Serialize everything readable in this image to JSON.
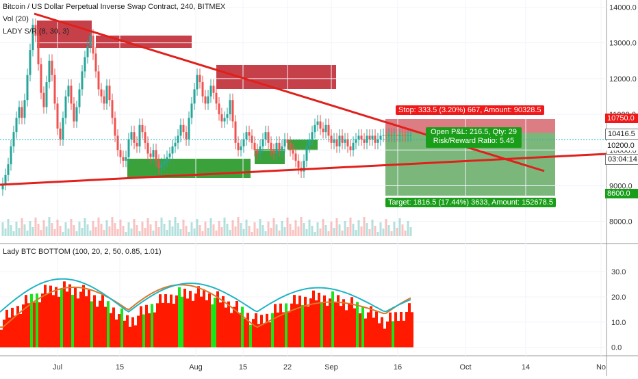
{
  "header": {
    "title": "Bitcoin / US Dollar Perpetual Inverse Swap Contract, 240, BITMEX",
    "vol": "Vol (20)",
    "sr": "LADY S/R (8, 30, 3)"
  },
  "indicator": {
    "label": "Lady BTC BOTTOM (100, 20, 2, 50, 0.85, 1.01)"
  },
  "price_tags": {
    "stop_level": "10750.0",
    "last": "10416.5",
    "entry": "10200.0",
    "countdown": "03:04:14",
    "target_level": "8600.0"
  },
  "position": {
    "stop": "Stop: 333.5 (3.20%) 667, Amount: 90328.5",
    "pnl": "Open P&L: 216.5, Qty: 29",
    "rr": "Risk/Reward Ratio: 5.45",
    "target": "Target: 1816.5 (17.44%) 3633, Amount: 152678.5"
  },
  "colors": {
    "bull": "#26a69a",
    "bear": "#ef5350",
    "trend": "#e0201b",
    "sr_line": "#5fa8d3",
    "cyan": "#1fb4c4",
    "orange": "#d9792b",
    "red_fill": "#ff1a00",
    "green_fill": "#19e619",
    "stop_bg": "#f01818",
    "target_bg": "#1a9e1a"
  },
  "chart_data": [
    {
      "type": "line",
      "title": "Bitcoin / US Dollar Perpetual Inverse Swap Contract, 240, BITMEX",
      "ylim": [
        7400,
        14200
      ],
      "y_ticks": [
        8000,
        9000,
        10000,
        11000,
        12000,
        13000,
        14000
      ],
      "y_tick_labels": [
        "8000.0",
        "9000.0",
        "10000.0",
        "11000.0",
        "12000.0",
        "13000.0",
        "14000.0"
      ],
      "x_ticks": [
        "Jul",
        "15",
        "Aug",
        "15",
        "22",
        "Sep",
        "16",
        "Oct",
        "14",
        "No"
      ],
      "series": [
        {
          "x": [
            0,
            4,
            8,
            12,
            16,
            20,
            24,
            28,
            32,
            36,
            40,
            44,
            48,
            52,
            56,
            60,
            64,
            68,
            72,
            76,
            80,
            84,
            88,
            92,
            96,
            100,
            104,
            108,
            112,
            116,
            120,
            124,
            128,
            132,
            136,
            140,
            144,
            148,
            152,
            156,
            160,
            164,
            168,
            172,
            176,
            180,
            184,
            188,
            192,
            196,
            200,
            204,
            208,
            212,
            216,
            220,
            224,
            228,
            232,
            236,
            240,
            244,
            248,
            252,
            256,
            260,
            264,
            268,
            272,
            276,
            280,
            284,
            288,
            292,
            296,
            300,
            304,
            308,
            312,
            316,
            320,
            324,
            328,
            332,
            336,
            340,
            344,
            348,
            352,
            356,
            360,
            364,
            368,
            372,
            376,
            380,
            384,
            388,
            392,
            396,
            400,
            404,
            408,
            412,
            416,
            420,
            424,
            428,
            432,
            436,
            440,
            444,
            448,
            452,
            456,
            460,
            464,
            468,
            472,
            476,
            480,
            484,
            488,
            492,
            496,
            500,
            504,
            508,
            512,
            516,
            520,
            524,
            528,
            532,
            536,
            540,
            544,
            548,
            552,
            556,
            560,
            564,
            568,
            572,
            576,
            580,
            584,
            588,
            592,
            596,
            600
          ],
          "values": [
            8900,
            9050,
            9300,
            9600,
            10100,
            10500,
            10900,
            11200,
            10900,
            11400,
            12100,
            12800,
            13500,
            13200,
            12400,
            11600,
            11200,
            11900,
            12500,
            12100,
            11300,
            10600,
            10300,
            10900,
            11500,
            11800,
            11300,
            10800,
            11200,
            11700,
            12200,
            12600,
            12900,
            13200,
            12700,
            12200,
            11700,
            11500,
            11300,
            11800,
            11400,
            10900,
            10400,
            10000,
            9800,
            9700,
            9800,
            10300,
            10500,
            10200,
            10100,
            10700,
            10500,
            10200,
            9900,
            9800,
            10000,
            9700,
            9500,
            9600,
            9700,
            9800,
            9900,
            10100,
            10200,
            10400,
            10700,
            10500,
            10300,
            10900,
            11300,
            11700,
            12100,
            11900,
            11500,
            11300,
            11500,
            11800,
            11600,
            11300,
            11000,
            10800,
            10900,
            11000,
            11400,
            10800,
            10200,
            10000,
            10100,
            10300,
            10500,
            10400,
            10200,
            10000,
            9900,
            10100,
            10300,
            10500,
            10200,
            10000,
            9900,
            10200,
            10000,
            10100,
            10300,
            10200,
            10000,
            9900,
            9700,
            9500,
            9400,
            9700,
            10100,
            10300,
            10500,
            10700,
            10800,
            10600,
            10500,
            10700,
            10400,
            10200,
            10300,
            10100,
            10400,
            10200,
            10300,
            10100,
            10000,
            10200,
            10300,
            10400,
            10300,
            10200,
            10400,
            10300,
            10400,
            10200,
            10300,
            10400,
            10420,
            10400,
            10430,
            10400,
            10416,
            10400,
            10420,
            10416,
            10410,
            10416,
            10416
          ]
        }
      ]
    },
    {
      "type": "area",
      "title": "Lady BTC BOTTOM (100, 20, 2, 50, 0.85, 1.01)",
      "ylim": [
        -2,
        36
      ],
      "y_ticks": [
        0,
        10,
        20,
        30
      ],
      "y_tick_labels": [
        "0.0",
        "10.0",
        "20.0",
        "30.0"
      ]
    }
  ]
}
